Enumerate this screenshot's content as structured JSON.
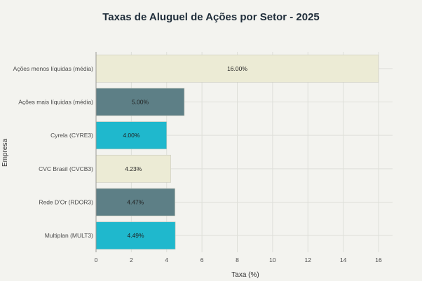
{
  "chart_data": {
    "type": "bar",
    "orientation": "horizontal",
    "title": "Taxas de Aluguel de Ações por Setor - 2025",
    "xlabel": "Taxa (%)",
    "ylabel": "Empresa",
    "xlim": [
      0,
      16
    ],
    "xticks": [
      0,
      2,
      4,
      6,
      8,
      10,
      12,
      14,
      16
    ],
    "grid": true,
    "legend": "none",
    "categories": [
      "Ações menos líquidas (média)",
      "Ações mais líquidas (média)",
      "Cyrela (CYRE3)",
      "CVC Brasil (CVCB3)",
      "Rede D'Or (RDOR3)",
      "Multiplan (MULT3)"
    ],
    "values": [
      16.0,
      5.0,
      4.0,
      4.23,
      4.47,
      4.49
    ],
    "data_labels": [
      "16.00%",
      "5.00%",
      "4.00%",
      "4.23%",
      "4.47%",
      "4.49%"
    ],
    "colors": [
      "#ecebd5",
      "#5d7f86",
      "#1fb8cd",
      "#ecebd5",
      "#5d7f86",
      "#1fb8cd"
    ]
  }
}
